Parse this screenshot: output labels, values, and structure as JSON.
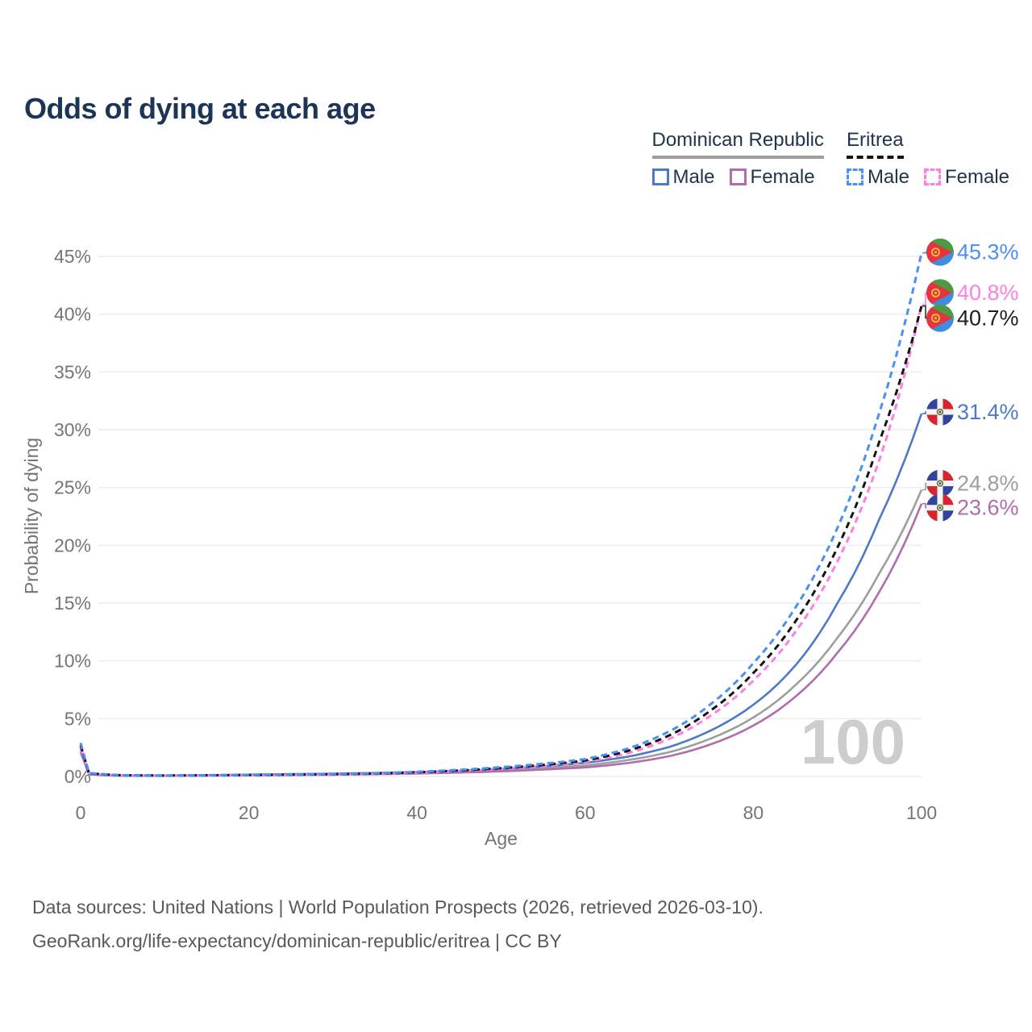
{
  "title": "Odds of dying at each age",
  "legend": {
    "groups": [
      {
        "name": "Dominican Republic",
        "underline_style": "solid",
        "underline_color": "#9e9e9e",
        "items": [
          {
            "label": "Male",
            "color": "#4d79c7",
            "dashed": false
          },
          {
            "label": "Female",
            "color": "#b06cad",
            "dashed": false
          }
        ]
      },
      {
        "name": "Eritrea",
        "underline_style": "dashed",
        "underline_color": "#141414",
        "items": [
          {
            "label": "Male",
            "color": "#4b90f2",
            "dashed": true
          },
          {
            "label": "Female",
            "color": "#ff7fe1",
            "dashed": true
          }
        ]
      }
    ]
  },
  "chart_data": {
    "type": "line",
    "title": "Odds of dying at each age",
    "xlabel": "Age",
    "ylabel": "Probability of dying",
    "xlim": [
      0,
      100
    ],
    "ylim": [
      0,
      45
    ],
    "grid": "horizontal",
    "x_ticks": [
      0,
      20,
      40,
      60,
      80,
      100
    ],
    "y_ticks": [
      0,
      5,
      10,
      15,
      20,
      25,
      30,
      35,
      40,
      45
    ],
    "y_tick_unit": "%",
    "legend_position": "top-right",
    "ages": [
      0,
      1,
      5,
      10,
      15,
      20,
      25,
      30,
      35,
      40,
      45,
      50,
      55,
      60,
      65,
      70,
      75,
      80,
      85,
      90,
      95,
      100
    ],
    "series": [
      {
        "key": "dr_male",
        "name": "Dominican Republic Male",
        "color": "#4d79c7",
        "dash": false,
        "end_label": "31.4%",
        "values": [
          2.5,
          0.22,
          0.08,
          0.07,
          0.11,
          0.16,
          0.2,
          0.24,
          0.3,
          0.38,
          0.49,
          0.65,
          0.87,
          1.18,
          1.7,
          2.55,
          4.0,
          6.2,
          9.6,
          15.0,
          22.3,
          31.4
        ]
      },
      {
        "key": "dr_female",
        "name": "Dominican Republic Female",
        "color": "#b06cad",
        "dash": false,
        "end_label": "23.6%",
        "values": [
          2.1,
          0.17,
          0.06,
          0.05,
          0.07,
          0.09,
          0.12,
          0.15,
          0.19,
          0.25,
          0.33,
          0.44,
          0.59,
          0.78,
          1.15,
          1.75,
          2.8,
          4.4,
          6.9,
          10.7,
          16.0,
          23.6
        ]
      },
      {
        "key": "dr_combined",
        "name": "Dominican Republic (gray combined line)",
        "color": "#9e9e9e",
        "dash": false,
        "end_label": "24.8%",
        "values": [
          2.3,
          0.19,
          0.07,
          0.06,
          0.09,
          0.12,
          0.15,
          0.19,
          0.24,
          0.31,
          0.4,
          0.53,
          0.71,
          0.95,
          1.4,
          2.1,
          3.3,
          5.1,
          7.9,
          12.0,
          17.6,
          24.8
        ]
      },
      {
        "key": "eritrea_male",
        "name": "Eritrea Male",
        "color": "#4b90f2",
        "dash": true,
        "end_label": "45.3%",
        "values": [
          2.9,
          0.3,
          0.11,
          0.09,
          0.11,
          0.14,
          0.17,
          0.21,
          0.28,
          0.4,
          0.57,
          0.8,
          1.1,
          1.5,
          2.4,
          3.9,
          6.3,
          9.8,
          14.6,
          21.5,
          31.5,
          45.3
        ]
      },
      {
        "key": "eritrea_female",
        "name": "Eritrea Female",
        "color": "#ff7fe1",
        "dash": true,
        "end_label": "40.8%",
        "values": [
          2.5,
          0.26,
          0.09,
          0.07,
          0.09,
          0.11,
          0.13,
          0.17,
          0.22,
          0.32,
          0.46,
          0.65,
          0.9,
          1.25,
          2.0,
          3.25,
          5.3,
          8.3,
          12.5,
          18.6,
          27.4,
          40.8
        ]
      },
      {
        "key": "eritrea_combined",
        "name": "Eritrea (black combined line)",
        "color": "#141414",
        "dash": true,
        "end_label": "40.7%",
        "values": [
          2.7,
          0.28,
          0.1,
          0.08,
          0.1,
          0.12,
          0.15,
          0.19,
          0.25,
          0.36,
          0.51,
          0.72,
          1.0,
          1.38,
          2.2,
          3.55,
          5.75,
          8.95,
          13.4,
          19.8,
          29.0,
          40.7
        ]
      }
    ],
    "end_labels": [
      {
        "text": "45.3%",
        "color": "#4b90f2",
        "flag": "eritrea",
        "value": 45.3,
        "offset": -1
      },
      {
        "text": "40.8%",
        "color": "#ff7fe1",
        "flag": "eritrea",
        "value": 40.8,
        "offset": -15
      },
      {
        "text": "40.7%",
        "color": "#1f1f1f",
        "flag": "eritrea",
        "value": 40.7,
        "offset": 15
      },
      {
        "text": "31.4%",
        "color": "#4d79c7",
        "flag": "dominican-republic",
        "value": 31.4,
        "offset": -2
      },
      {
        "text": "24.8%",
        "color": "#9e9e9e",
        "flag": "dominican-republic",
        "value": 24.8,
        "offset": -8
      },
      {
        "text": "23.6%",
        "color": "#b06cad",
        "flag": "dominican-republic",
        "value": 23.6,
        "offset": 5
      }
    ],
    "watermark": "100"
  },
  "colors": {
    "title": "#1c3557",
    "axis_text": "#757575",
    "gridline": "#ececec",
    "watermark": "#cdcdcd",
    "footer_text": "#595959"
  },
  "footer": {
    "line1": "Data sources: United Nations | World Population Prospects (2026, retrieved 2026-03-10).",
    "line2": "GeoRank.org/life-expectancy/dominican-republic/eritrea | CC BY"
  }
}
